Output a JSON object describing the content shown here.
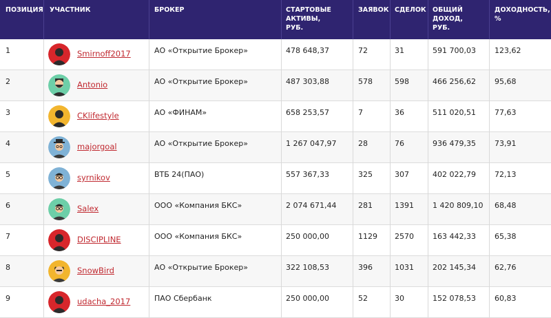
{
  "header": {
    "position": "ПОЗИЦИЯ",
    "participant": "УЧАСТНИК",
    "broker": "БРОКЕР",
    "start_assets": "СТАРТОВЫЕ\nАКТИВЫ,\nРУБ.",
    "orders": "ЗАЯВОК",
    "deals": "СДЕЛОК",
    "total_income": "ОБЩИЙ\nДОХОД,\nРУБ.",
    "yield": "ДОХОДНОСТЬ,\n%"
  },
  "rows": [
    {
      "pos": "1",
      "name": "Smirnoff2017",
      "broker": "АО «Открытие Брокер»",
      "assets": "478 648,37",
      "orders": "72",
      "deals": "31",
      "income": "591 700,03",
      "yield": "123,62",
      "avatar_icon": "user-red-icon",
      "avatar_color": "#d7262b"
    },
    {
      "pos": "2",
      "name": "Antonio",
      "broker": "АО «Открытие Брокер»",
      "assets": "487 303,88",
      "orders": "578",
      "deals": "598",
      "income": "466 256,62",
      "yield": "95,68",
      "avatar_icon": "user-beard-icon",
      "avatar_color": "#6dcfa8"
    },
    {
      "pos": "3",
      "name": "CKlifestyle",
      "broker": "АО «ФИНАМ»",
      "assets": "658 253,57",
      "orders": "7",
      "deals": "36",
      "income": "511 020,51",
      "yield": "77,63",
      "avatar_icon": "user-yellow-icon",
      "avatar_color": "#f2b52e"
    },
    {
      "pos": "4",
      "name": "majorgoal",
      "broker": "АО «Открытие Брокер»",
      "assets": "1 267 047,97",
      "orders": "28",
      "deals": "76",
      "income": "936 479,35",
      "yield": "73,91",
      "avatar_icon": "user-hat-icon",
      "avatar_color": "#7fb2d6"
    },
    {
      "pos": "5",
      "name": "syrnikov",
      "broker": "ВТБ 24(ПАО)",
      "assets": "557 367,33",
      "orders": "325",
      "deals": "307",
      "income": "402 022,79",
      "yield": "72,13",
      "avatar_icon": "user-glasses-icon",
      "avatar_color": "#7fb2d6"
    },
    {
      "pos": "6",
      "name": "Salex",
      "broker": "ООО «Компания БКС»",
      "assets": "2 074 671,44",
      "orders": "281",
      "deals": "1391",
      "income": "1 420 809,10",
      "yield": "68,48",
      "avatar_icon": "user-glasses-icon",
      "avatar_color": "#6dcfa8"
    },
    {
      "pos": "7",
      "name": "DISCIPLINE",
      "broker": "ООО «Компания БКС»",
      "assets": "250 000,00",
      "orders": "1129",
      "deals": "2570",
      "income": "163 442,33",
      "yield": "65,38",
      "avatar_icon": "user-red-icon",
      "avatar_color": "#d7262b"
    },
    {
      "pos": "8",
      "name": "SnowBird",
      "broker": "АО «Открытие Брокер»",
      "assets": "322 108,53",
      "orders": "396",
      "deals": "1031",
      "income": "202 145,34",
      "yield": "62,76",
      "avatar_icon": "user-bald-icon",
      "avatar_color": "#f2b52e"
    },
    {
      "pos": "9",
      "name": "udacha_2017",
      "broker": "ПАО Сбербанк",
      "assets": "250 000,00",
      "orders": "52",
      "deals": "30",
      "income": "152 078,53",
      "yield": "60,83",
      "avatar_icon": "user-red-icon",
      "avatar_color": "#d7262b"
    }
  ]
}
